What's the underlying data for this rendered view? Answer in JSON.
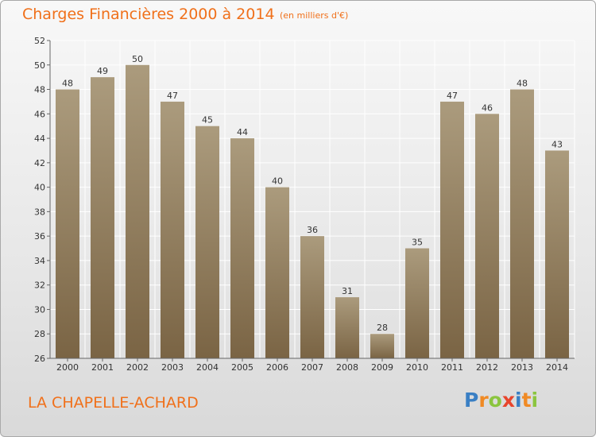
{
  "header": {
    "title": "Charges Financières 2000 à 2014",
    "unit": "(en milliers d'€)"
  },
  "footer": {
    "town": "LA CHAPELLE-ACHARD",
    "brand_letters": [
      "P",
      "r",
      "o",
      "x",
      "i",
      "t",
      "i"
    ],
    "brand_colors": [
      "#3a7fc4",
      "#f08a24",
      "#8bc53f",
      "#e8452c",
      "#3a7fc4",
      "#f08a24",
      "#8bc53f"
    ]
  },
  "colors": {
    "title": "#f0701a",
    "bar_top": "#ab9b7d",
    "bar_bottom": "#7a6444",
    "grid": "#ffffff",
    "axis": "#666666"
  },
  "chart_data": {
    "type": "bar",
    "title": "Charges Financières 2000 à 2014",
    "subtitle": "(en milliers d'€)",
    "categories": [
      "2000",
      "2001",
      "2002",
      "2003",
      "2004",
      "2005",
      "2006",
      "2007",
      "2008",
      "2009",
      "2010",
      "2011",
      "2012",
      "2013",
      "2014"
    ],
    "values": [
      48,
      49,
      50,
      47,
      45,
      44,
      40,
      36,
      31,
      28,
      35,
      47,
      46,
      48,
      43
    ],
    "ylim": [
      26,
      52
    ],
    "yticks": [
      26,
      28,
      30,
      32,
      34,
      36,
      38,
      40,
      42,
      44,
      46,
      48,
      50,
      52
    ],
    "grid": true,
    "data_labels": true
  }
}
